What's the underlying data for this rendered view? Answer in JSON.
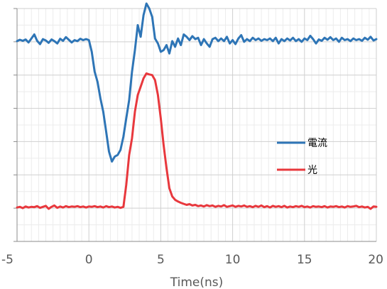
{
  "chart_data": {
    "type": "line",
    "title": "",
    "xlabel": "Time(ns)",
    "ylabel": "",
    "xlim": [
      -5,
      20
    ],
    "ylim": [
      0,
      7
    ],
    "x_ticks": [
      -5,
      0,
      5,
      10,
      15,
      20
    ],
    "x_tick_labels": [
      "-5",
      "0",
      "5",
      "10",
      "15",
      "20"
    ],
    "y_ticks": [
      0,
      1,
      2,
      3,
      4,
      5,
      6,
      7
    ],
    "x_minor_step": 0.5,
    "y_minor_step": 0.5,
    "grid": true,
    "legend_position": "right",
    "series": [
      {
        "name": "電流",
        "color": "#2E75B6",
        "points": [
          [
            -5.0,
            6.02
          ],
          [
            -4.8,
            6.06
          ],
          [
            -4.6,
            6.03
          ],
          [
            -4.4,
            6.07
          ],
          [
            -4.2,
            5.98
          ],
          [
            -4.0,
            6.1
          ],
          [
            -3.8,
            6.22
          ],
          [
            -3.6,
            6.03
          ],
          [
            -3.4,
            5.93
          ],
          [
            -3.2,
            6.08
          ],
          [
            -3.0,
            6.04
          ],
          [
            -2.8,
            5.97
          ],
          [
            -2.6,
            6.07
          ],
          [
            -2.4,
            6.02
          ],
          [
            -2.2,
            5.95
          ],
          [
            -2.0,
            6.09
          ],
          [
            -1.8,
            6.03
          ],
          [
            -1.6,
            6.14
          ],
          [
            -1.4,
            6.06
          ],
          [
            -1.2,
            5.98
          ],
          [
            -1.0,
            6.05
          ],
          [
            -0.8,
            6.02
          ],
          [
            -0.6,
            6.09
          ],
          [
            -0.4,
            6.05
          ],
          [
            -0.2,
            6.08
          ],
          [
            0.0,
            6.05
          ],
          [
            0.2,
            5.7
          ],
          [
            0.4,
            5.1
          ],
          [
            0.6,
            4.8
          ],
          [
            0.8,
            4.3
          ],
          [
            1.0,
            3.9
          ],
          [
            1.2,
            3.3
          ],
          [
            1.4,
            2.7
          ],
          [
            1.6,
            2.4
          ],
          [
            1.8,
            2.55
          ],
          [
            2.0,
            2.6
          ],
          [
            2.2,
            2.75
          ],
          [
            2.4,
            3.15
          ],
          [
            2.6,
            3.7
          ],
          [
            2.8,
            4.25
          ],
          [
            3.0,
            5.1
          ],
          [
            3.2,
            5.75
          ],
          [
            3.4,
            6.5
          ],
          [
            3.6,
            6.15
          ],
          [
            3.8,
            6.8
          ],
          [
            4.0,
            7.15
          ],
          [
            4.2,
            7.0
          ],
          [
            4.4,
            6.75
          ],
          [
            4.6,
            6.1
          ],
          [
            4.8,
            5.95
          ],
          [
            5.0,
            5.7
          ],
          [
            5.2,
            5.75
          ],
          [
            5.4,
            5.9
          ],
          [
            5.6,
            5.65
          ],
          [
            5.8,
            6.02
          ],
          [
            6.0,
            5.85
          ],
          [
            6.2,
            6.1
          ],
          [
            6.4,
            5.9
          ],
          [
            6.6,
            6.22
          ],
          [
            6.8,
            6.15
          ],
          [
            7.0,
            6.05
          ],
          [
            7.2,
            6.17
          ],
          [
            7.4,
            6.08
          ],
          [
            7.6,
            6.12
          ],
          [
            7.8,
            5.9
          ],
          [
            8.0,
            6.08
          ],
          [
            8.2,
            5.95
          ],
          [
            8.4,
            5.85
          ],
          [
            8.6,
            6.08
          ],
          [
            8.8,
            6.12
          ],
          [
            9.0,
            6.02
          ],
          [
            9.2,
            6.1
          ],
          [
            9.4,
            6.02
          ],
          [
            9.6,
            6.15
          ],
          [
            9.8,
            5.95
          ],
          [
            10.0,
            6.05
          ],
          [
            10.2,
            5.93
          ],
          [
            10.4,
            6.1
          ],
          [
            10.6,
            6.2
          ],
          [
            10.8,
            6.0
          ],
          [
            11.0,
            6.08
          ],
          [
            11.2,
            6.02
          ],
          [
            11.4,
            6.12
          ],
          [
            11.6,
            6.05
          ],
          [
            11.8,
            6.1
          ],
          [
            12.0,
            6.03
          ],
          [
            12.2,
            6.08
          ],
          [
            12.4,
            6.05
          ],
          [
            12.6,
            6.1
          ],
          [
            12.8,
            6.02
          ],
          [
            13.0,
            6.12
          ],
          [
            13.2,
            5.95
          ],
          [
            13.4,
            6.08
          ],
          [
            13.6,
            6.02
          ],
          [
            13.8,
            6.1
          ],
          [
            14.0,
            6.04
          ],
          [
            14.2,
            6.12
          ],
          [
            14.4,
            6.02
          ],
          [
            14.6,
            6.08
          ],
          [
            14.8,
            6.0
          ],
          [
            15.0,
            6.1
          ],
          [
            15.2,
            6.05
          ],
          [
            15.4,
            6.18
          ],
          [
            15.6,
            6.08
          ],
          [
            15.8,
            5.95
          ],
          [
            16.0,
            6.07
          ],
          [
            16.2,
            6.03
          ],
          [
            16.4,
            6.12
          ],
          [
            16.6,
            6.06
          ],
          [
            16.8,
            6.14
          ],
          [
            17.0,
            6.05
          ],
          [
            17.2,
            6.1
          ],
          [
            17.4,
            6.0
          ],
          [
            17.6,
            6.12
          ],
          [
            17.8,
            6.05
          ],
          [
            18.0,
            6.08
          ],
          [
            18.2,
            6.02
          ],
          [
            18.4,
            6.1
          ],
          [
            18.6,
            6.05
          ],
          [
            18.8,
            6.08
          ],
          [
            19.0,
            6.03
          ],
          [
            19.2,
            6.12
          ],
          [
            19.4,
            6.06
          ],
          [
            19.6,
            6.15
          ],
          [
            19.8,
            6.04
          ],
          [
            20.0,
            6.08
          ]
        ]
      },
      {
        "name": "光",
        "color": "#E8383D",
        "points": [
          [
            -5.0,
            1.02
          ],
          [
            -4.8,
            1.04
          ],
          [
            -4.6,
            1.0
          ],
          [
            -4.4,
            1.05
          ],
          [
            -4.2,
            1.02
          ],
          [
            -4.0,
            1.04
          ],
          [
            -3.8,
            1.03
          ],
          [
            -3.6,
            1.06
          ],
          [
            -3.4,
            1.01
          ],
          [
            -3.2,
            1.04
          ],
          [
            -3.0,
            1.07
          ],
          [
            -2.8,
            0.98
          ],
          [
            -2.6,
            1.04
          ],
          [
            -2.4,
            1.08
          ],
          [
            -2.2,
            1.01
          ],
          [
            -2.0,
            1.05
          ],
          [
            -1.8,
            1.02
          ],
          [
            -1.6,
            1.06
          ],
          [
            -1.4,
            1.03
          ],
          [
            -1.2,
            1.05
          ],
          [
            -1.0,
            1.04
          ],
          [
            -0.8,
            1.06
          ],
          [
            -0.6,
            1.03
          ],
          [
            -0.4,
            1.05
          ],
          [
            -0.2,
            1.02
          ],
          [
            0.0,
            1.05
          ],
          [
            0.2,
            1.04
          ],
          [
            0.4,
            1.06
          ],
          [
            0.6,
            1.03
          ],
          [
            0.8,
            1.05
          ],
          [
            1.0,
            1.02
          ],
          [
            1.2,
            1.06
          ],
          [
            1.4,
            1.03
          ],
          [
            1.6,
            1.05
          ],
          [
            1.8,
            1.02
          ],
          [
            2.0,
            1.04
          ],
          [
            2.2,
            1.01
          ],
          [
            2.4,
            1.04
          ],
          [
            2.6,
            1.7
          ],
          [
            2.8,
            2.6
          ],
          [
            3.0,
            3.1
          ],
          [
            3.2,
            3.9
          ],
          [
            3.4,
            4.4
          ],
          [
            3.6,
            4.65
          ],
          [
            3.8,
            4.9
          ],
          [
            4.0,
            5.05
          ],
          [
            4.2,
            5.02
          ],
          [
            4.4,
            5.0
          ],
          [
            4.6,
            4.85
          ],
          [
            4.8,
            4.4
          ],
          [
            5.0,
            3.7
          ],
          [
            5.2,
            2.9
          ],
          [
            5.4,
            2.2
          ],
          [
            5.6,
            1.6
          ],
          [
            5.8,
            1.35
          ],
          [
            6.0,
            1.25
          ],
          [
            6.2,
            1.2
          ],
          [
            6.4,
            1.16
          ],
          [
            6.6,
            1.13
          ],
          [
            6.8,
            1.1
          ],
          [
            7.0,
            1.12
          ],
          [
            7.2,
            1.08
          ],
          [
            7.4,
            1.1
          ],
          [
            7.6,
            1.06
          ],
          [
            7.8,
            1.08
          ],
          [
            8.0,
            1.05
          ],
          [
            8.2,
            1.09
          ],
          [
            8.4,
            1.06
          ],
          [
            8.6,
            1.08
          ],
          [
            8.8,
            1.04
          ],
          [
            9.0,
            1.07
          ],
          [
            9.2,
            1.05
          ],
          [
            9.4,
            1.09
          ],
          [
            9.6,
            1.04
          ],
          [
            9.8,
            1.06
          ],
          [
            10.0,
            1.08
          ],
          [
            10.2,
            1.04
          ],
          [
            10.4,
            1.07
          ],
          [
            10.6,
            1.05
          ],
          [
            10.8,
            1.08
          ],
          [
            11.0,
            1.04
          ],
          [
            11.2,
            1.06
          ],
          [
            11.4,
            1.03
          ],
          [
            11.6,
            1.07
          ],
          [
            11.8,
            1.04
          ],
          [
            12.0,
            1.08
          ],
          [
            12.2,
            1.03
          ],
          [
            12.4,
            1.06
          ],
          [
            12.6,
            1.02
          ],
          [
            12.8,
            1.07
          ],
          [
            13.0,
            1.04
          ],
          [
            13.2,
            1.06
          ],
          [
            13.4,
            1.03
          ],
          [
            13.6,
            1.07
          ],
          [
            13.8,
            1.02
          ],
          [
            14.0,
            1.05
          ],
          [
            14.2,
            1.03
          ],
          [
            14.4,
            1.06
          ],
          [
            14.6,
            1.04
          ],
          [
            14.8,
            1.07
          ],
          [
            15.0,
            1.03
          ],
          [
            15.2,
            1.05
          ],
          [
            15.4,
            1.02
          ],
          [
            15.6,
            1.06
          ],
          [
            15.8,
            1.04
          ],
          [
            16.0,
            1.05
          ],
          [
            16.2,
            1.03
          ],
          [
            16.4,
            1.06
          ],
          [
            16.6,
            1.02
          ],
          [
            16.8,
            1.05
          ],
          [
            17.0,
            1.04
          ],
          [
            17.2,
            1.06
          ],
          [
            17.4,
            1.03
          ],
          [
            17.6,
            1.05
          ],
          [
            17.8,
            1.02
          ],
          [
            18.0,
            1.06
          ],
          [
            18.2,
            1.04
          ],
          [
            18.4,
            1.05
          ],
          [
            18.6,
            1.07
          ],
          [
            18.8,
            1.03
          ],
          [
            19.0,
            1.05
          ],
          [
            19.2,
            1.02
          ],
          [
            19.4,
            1.04
          ],
          [
            19.6,
            0.98
          ],
          [
            19.8,
            1.05
          ],
          [
            20.0,
            1.04
          ]
        ]
      }
    ]
  }
}
